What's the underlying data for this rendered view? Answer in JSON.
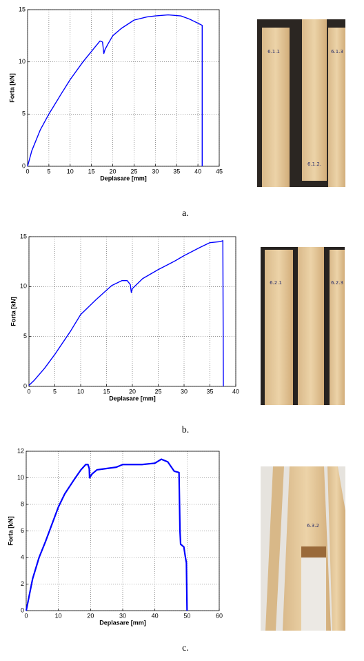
{
  "chart_data": [
    {
      "type": "line",
      "xlabel": "Deplasare [mm]",
      "ylabel": "Forta [kN]",
      "x": [
        0,
        1,
        3,
        5,
        8,
        10,
        13,
        15,
        16,
        17,
        17.6,
        17.9,
        18.2,
        19,
        20,
        22,
        25,
        28,
        30,
        33,
        36,
        38,
        40,
        41,
        41
      ],
      "values": [
        0,
        1.5,
        3.5,
        5,
        7,
        8.3,
        10,
        11,
        11.5,
        12,
        11.9,
        10.8,
        11.2,
        11.8,
        12.5,
        13.2,
        14,
        14.3,
        14.4,
        14.5,
        14.4,
        14.1,
        13.7,
        13.5,
        0
      ],
      "color": "#0000ff",
      "xlim": [
        0,
        45
      ],
      "xticks": [
        0,
        5,
        10,
        15,
        20,
        25,
        30,
        35,
        40,
        45
      ],
      "ylim": [
        0,
        15
      ],
      "yticks": [
        0,
        5,
        10,
        15
      ],
      "grid": true
    },
    {
      "type": "line",
      "xlabel": "Deplasare [mm]",
      "ylabel": "Forta [kN]",
      "x": [
        0,
        1,
        3,
        5,
        8,
        10,
        13,
        16,
        18,
        19,
        19.6,
        19.8,
        20,
        22,
        25,
        28,
        30,
        33,
        35,
        37,
        37.5,
        37.6
      ],
      "values": [
        0.1,
        0.6,
        1.8,
        3.2,
        5.5,
        7.2,
        8.7,
        10.1,
        10.6,
        10.6,
        10.2,
        9.4,
        9.8,
        10.8,
        11.7,
        12.5,
        13.1,
        13.9,
        14.4,
        14.5,
        14.6,
        0
      ],
      "color": "#0000ff",
      "xlim": [
        0,
        40
      ],
      "xticks": [
        0,
        5,
        10,
        15,
        20,
        25,
        30,
        35,
        40
      ],
      "ylim": [
        0,
        15
      ],
      "yticks": [
        0,
        5,
        10,
        15
      ],
      "grid": true
    },
    {
      "type": "line",
      "xlabel": "Deplasare [mm]",
      "ylabel": "Forta [kN]",
      "x": [
        0,
        1,
        2,
        4,
        6,
        8,
        10,
        12,
        15,
        17,
        18.5,
        19.2,
        19.6,
        19.7,
        20.5,
        22,
        25,
        28,
        30,
        33,
        36,
        40,
        42,
        44,
        46,
        47.5,
        47.8,
        48,
        49,
        49.5,
        49.8,
        50
      ],
      "values": [
        0,
        1.2,
        2.4,
        4,
        5.2,
        6.5,
        7.8,
        8.8,
        9.9,
        10.6,
        11,
        11,
        10.7,
        10,
        10.3,
        10.6,
        10.7,
        10.8,
        11,
        11,
        11,
        11.1,
        11.4,
        11.2,
        10.5,
        10.4,
        6,
        5,
        4.8,
        4,
        3.6,
        0
      ],
      "color": "#0000ff",
      "xlim": [
        0,
        60
      ],
      "xticks": [
        0,
        10,
        20,
        30,
        40,
        50,
        60
      ],
      "ylim": [
        0,
        12
      ],
      "yticks": [
        0,
        2,
        4,
        6,
        8,
        10,
        12
      ],
      "grid": true
    }
  ],
  "captions": [
    "a.",
    "b.",
    "c."
  ],
  "photos": [
    {
      "labels": [
        "6.1.1",
        "6.1.2.",
        "6.1.3"
      ]
    },
    {
      "labels": [
        "6.2.1",
        "6.2.3"
      ]
    },
    {
      "labels": [
        "6.3.2"
      ]
    }
  ]
}
